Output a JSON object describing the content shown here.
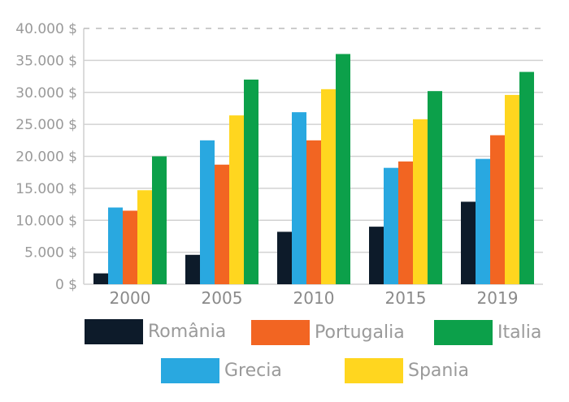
{
  "chart_data": {
    "type": "bar",
    "title": "",
    "xlabel": "",
    "ylabel": "",
    "categories": [
      "2000",
      "2005",
      "2010",
      "2015",
      "2019"
    ],
    "ylim": [
      0,
      40000
    ],
    "yticks": [
      0,
      5000,
      10000,
      15000,
      20000,
      25000,
      30000,
      35000,
      40000
    ],
    "ytick_labels": [
      "0 $",
      "5.000 $",
      "10.000 $",
      "15.000 $",
      "20.000 $",
      "25.000 $",
      "30.000 $",
      "35.000 $",
      "40.000 $"
    ],
    "grid": true,
    "legend_position": "bottom",
    "series": [
      {
        "name": "România",
        "color": "#0d1b2a",
        "values": [
          1700,
          4600,
          8200,
          9000,
          12900
        ]
      },
      {
        "name": "Grecia",
        "color": "#29a8e0",
        "values": [
          12000,
          22500,
          26900,
          18200,
          19600
        ]
      },
      {
        "name": "Portugalia",
        "color": "#f26522",
        "values": [
          11500,
          18700,
          22500,
          19200,
          23300
        ]
      },
      {
        "name": "Spania",
        "color": "#ffd61f",
        "values": [
          14700,
          26400,
          30500,
          25800,
          29600
        ]
      },
      {
        "name": "Italia",
        "color": "#0ca04a",
        "values": [
          20000,
          32000,
          36000,
          30200,
          33200
        ]
      }
    ]
  }
}
